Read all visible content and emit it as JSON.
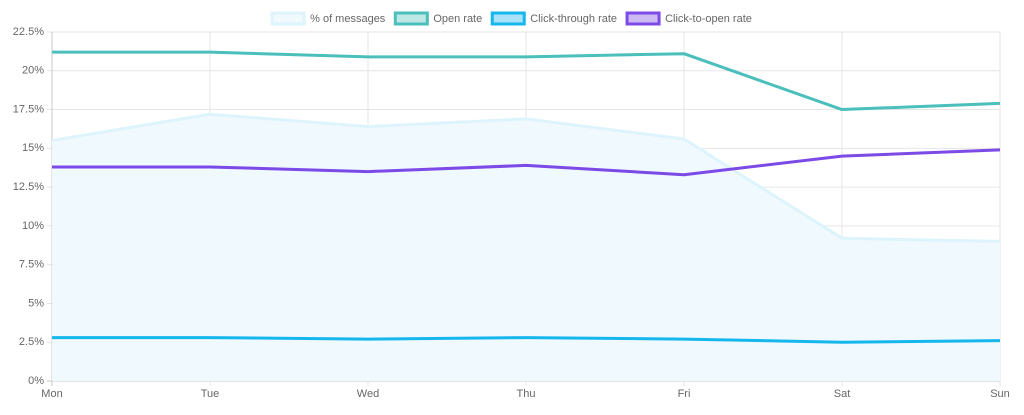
{
  "chart_data": {
    "type": "line",
    "categories": [
      "Mon",
      "Tue",
      "Wed",
      "Thu",
      "Fri",
      "Sat",
      "Sun"
    ],
    "series": [
      {
        "name": "% of messages",
        "color": "#def4fc",
        "fill_color": "#f0f9fe",
        "fill": true,
        "values": [
          15.5,
          17.2,
          16.4,
          16.9,
          15.6,
          9.2,
          9.0
        ]
      },
      {
        "name": "Open rate",
        "color": "#4bbfbb",
        "fill_color": "#bde8e6",
        "fill": false,
        "values": [
          21.2,
          21.2,
          20.9,
          20.9,
          21.1,
          17.5,
          17.9
        ]
      },
      {
        "name": "Click-through rate",
        "color": "#15b7ec",
        "fill_color": "#a7e2f8",
        "fill": false,
        "values": [
          2.8,
          2.8,
          2.7,
          2.8,
          2.7,
          2.5,
          2.6
        ]
      },
      {
        "name": "Click-to-open rate",
        "color": "#7c4ae6",
        "fill_color": "#cdbaf5",
        "fill": false,
        "values": [
          13.8,
          13.8,
          13.5,
          13.9,
          13.3,
          14.5,
          14.9
        ]
      }
    ],
    "ylim": [
      0,
      22.5
    ],
    "yticks": [
      {
        "value": 0,
        "label": "0%"
      },
      {
        "value": 2.5,
        "label": "2.5%"
      },
      {
        "value": 5,
        "label": "5%"
      },
      {
        "value": 7.5,
        "label": "7.5%"
      },
      {
        "value": 10,
        "label": "10%"
      },
      {
        "value": 12.5,
        "label": "12.5%"
      },
      {
        "value": 15,
        "label": "15%"
      },
      {
        "value": 17.5,
        "label": "17.5%"
      },
      {
        "value": 20,
        "label": "20%"
      },
      {
        "value": 22.5,
        "label": "22.5%"
      }
    ],
    "grid": true,
    "legend": "top"
  }
}
